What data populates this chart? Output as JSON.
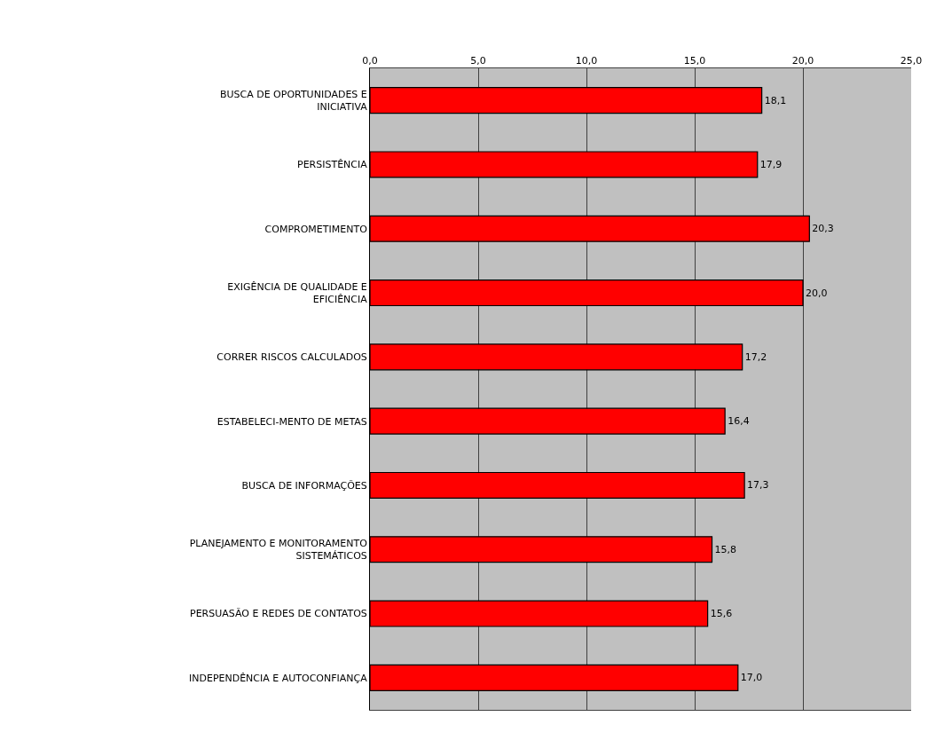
{
  "chart_data": {
    "type": "bar",
    "orientation": "horizontal",
    "categories": [
      "BUSCA DE OPORTUNIDADES E\nINICIATIVA",
      "PERSISTÊNCIA",
      "COMPROMETIMENTO",
      "EXIGÊNCIA DE QUALIDADE E\nEFICIÊNCIA",
      "CORRER RISCOS CALCULADOS",
      "ESTABELECI-MENTO DE METAS",
      "BUSCA DE INFORMAÇÕES",
      "PLANEJAMENTO E MONITORAMENTO\nSISTEMÁTICOS",
      "PERSUASÃO E REDES DE CONTATOS",
      "INDEPENDÊNCIA E AUTOCONFIANÇA"
    ],
    "values": [
      18.1,
      17.9,
      20.3,
      20.0,
      17.2,
      16.4,
      17.3,
      15.8,
      15.6,
      17.0
    ],
    "value_labels": [
      "18,1",
      "17,9",
      "20,3",
      "20,0",
      "17,2",
      "16,4",
      "17,3",
      "15,8",
      "15,6",
      "17,0"
    ],
    "color": "#ff0000",
    "xlim": [
      0,
      25
    ],
    "xticks": [
      {
        "value": 0,
        "label": "0,0"
      },
      {
        "value": 5,
        "label": "5,0"
      },
      {
        "value": 10,
        "label": "10,0"
      },
      {
        "value": 15,
        "label": "15,0"
      },
      {
        "value": 20,
        "label": "20,0"
      },
      {
        "value": 25,
        "label": "25,0"
      }
    ],
    "grid": "x"
  }
}
